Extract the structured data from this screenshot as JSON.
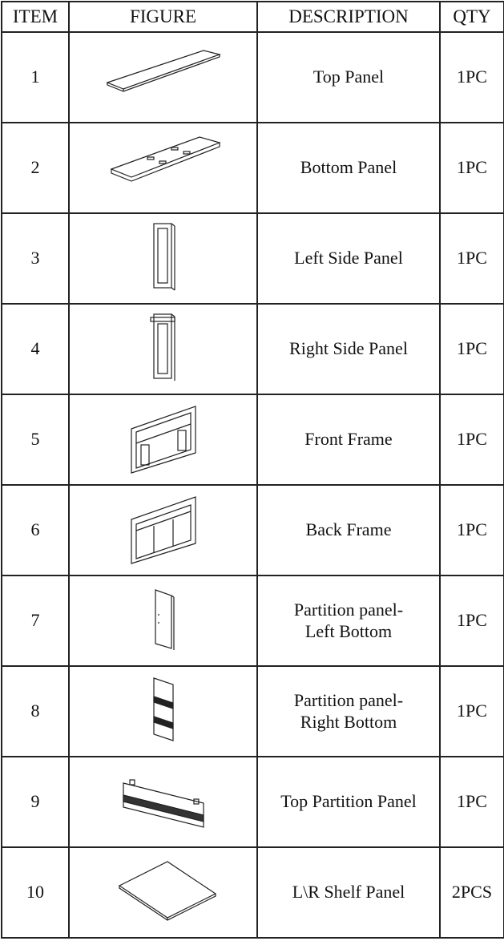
{
  "table": {
    "header": [
      "ITEM",
      "FIGURE",
      "DESCRIPTION",
      "QTY"
    ],
    "rows": [
      [
        "1",
        "Top Panel",
        "1PC"
      ],
      [
        "2",
        "Bottom Panel",
        "1PC"
      ],
      [
        "3",
        "Left Side Panel",
        "1PC"
      ],
      [
        "4",
        "Right Side Panel",
        "1PC"
      ],
      [
        "5",
        "Front Frame",
        "1PC"
      ],
      [
        "6",
        "Back Frame",
        "1PC"
      ],
      [
        "7",
        "Partition panel-\nLeft Bottom",
        "1PC"
      ],
      [
        "8",
        "Partition panel-\nRight Bottom",
        "1PC"
      ],
      [
        "9",
        "Top Partition Panel",
        "1PC"
      ],
      [
        "10",
        "L\\R Shelf Panel",
        "2PCS"
      ]
    ]
  }
}
